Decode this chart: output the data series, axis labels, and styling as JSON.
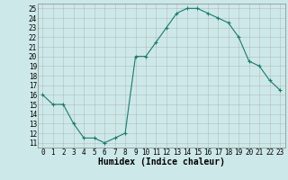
{
  "x": [
    0,
    1,
    2,
    3,
    4,
    5,
    6,
    7,
    8,
    9,
    10,
    11,
    12,
    13,
    14,
    15,
    16,
    17,
    18,
    19,
    20,
    21,
    22,
    23
  ],
  "y": [
    16,
    15,
    15,
    13,
    11.5,
    11.5,
    11,
    11.5,
    12,
    20,
    20,
    21.5,
    23,
    24.5,
    25,
    25,
    24.5,
    24,
    23.5,
    22,
    19.5,
    19,
    17.5,
    16.5
  ],
  "line_color": "#1a7a6e",
  "marker": "+",
  "marker_size": 3,
  "marker_linewidth": 0.8,
  "line_width": 0.8,
  "bg_color": "#cde8e8",
  "grid_color": "#aaaaaa",
  "xlabel": "Humidex (Indice chaleur)",
  "xlim": [
    -0.5,
    23.5
  ],
  "ylim": [
    10.5,
    25.5
  ],
  "yticks": [
    11,
    12,
    13,
    14,
    15,
    16,
    17,
    18,
    19,
    20,
    21,
    22,
    23,
    24,
    25
  ],
  "xticks": [
    0,
    1,
    2,
    3,
    4,
    5,
    6,
    7,
    8,
    9,
    10,
    11,
    12,
    13,
    14,
    15,
    16,
    17,
    18,
    19,
    20,
    21,
    22,
    23
  ],
  "xlabel_fontsize": 7,
  "tick_fontsize": 5.5,
  "spine_color": "#888888"
}
